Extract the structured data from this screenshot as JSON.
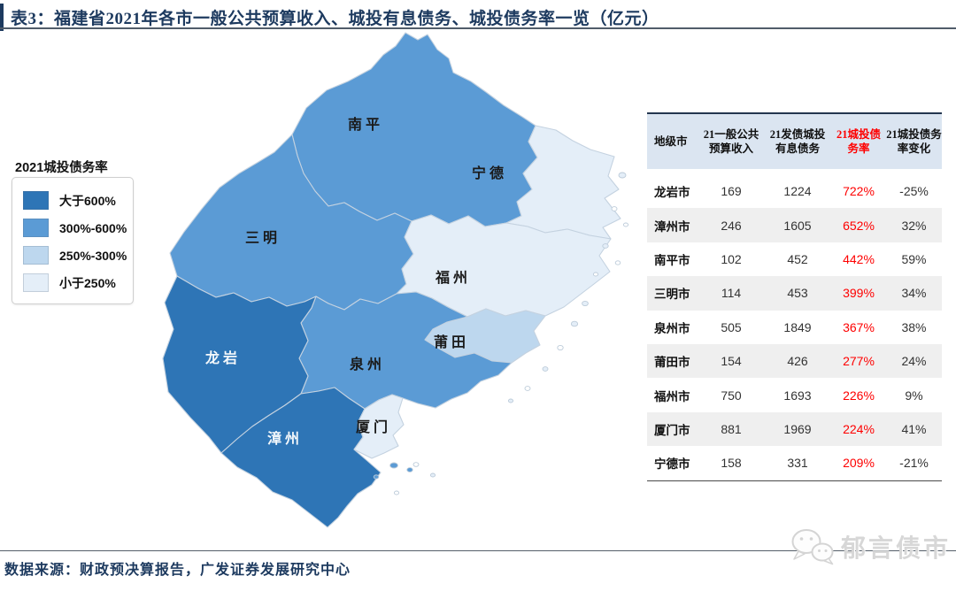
{
  "figure": {
    "title": "表3：福建省2021年各市一般公共预算收入、城投有息债务、城投债务率一览（亿元）",
    "source": "数据来源：财政预决算报告，广发证券发展研究中心",
    "watermark": "郁言债市"
  },
  "legend": {
    "title": "2021城投债务率",
    "items": [
      {
        "label": "大于600%",
        "color": "#2E75B6"
      },
      {
        "label": "300%-600%",
        "color": "#5B9BD5"
      },
      {
        "label": "250%-300%",
        "color": "#BDD7EE"
      },
      {
        "label": "小于250%",
        "color": "#E4EEF8"
      }
    ]
  },
  "map": {
    "regions": [
      {
        "id": "nanping",
        "label": "南平",
        "tier": "300%-600%",
        "color": "#5B9BD5",
        "label_color": "#1a1a1a"
      },
      {
        "id": "ningde",
        "label": "宁德",
        "tier": "小于250%",
        "color": "#E4EEF8",
        "label_color": "#1a1a1a"
      },
      {
        "id": "sanming",
        "label": "三明",
        "tier": "300%-600%",
        "color": "#5B9BD5",
        "label_color": "#1a1a1a"
      },
      {
        "id": "fuzhou",
        "label": "福州",
        "tier": "小于250%",
        "color": "#E4EEF8",
        "label_color": "#1a1a1a"
      },
      {
        "id": "putian",
        "label": "莆田",
        "tier": "250%-300%",
        "color": "#BDD7EE",
        "label_color": "#1a1a1a"
      },
      {
        "id": "quanzhou",
        "label": "泉州",
        "tier": "300%-600%",
        "color": "#5B9BD5",
        "label_color": "#1a1a1a"
      },
      {
        "id": "longyan",
        "label": "龙岩",
        "tier": "大于600%",
        "color": "#2E75B6",
        "label_color": "#f4f8fb"
      },
      {
        "id": "zhangzhou",
        "label": "漳州",
        "tier": "大于600%",
        "color": "#2E75B6",
        "label_color": "#f4f8fb"
      },
      {
        "id": "xiamen",
        "label": "厦门",
        "tier": "小于250%",
        "color": "#E4EEF8",
        "label_color": "#1a1a1a"
      }
    ]
  },
  "table": {
    "columns": [
      {
        "line1": "地级市",
        "line2": ""
      },
      {
        "line1": "21一般公共",
        "line2": "预算收入"
      },
      {
        "line1": "21发债城投",
        "line2": "有息债务"
      },
      {
        "line1": "21城投债",
        "line2": "务率",
        "highlight": true
      },
      {
        "line1": "21城投债务",
        "line2": "率变化"
      }
    ],
    "rows": [
      {
        "city": "龙岩市",
        "revenue": "169",
        "debt": "1224",
        "ratio": "722%",
        "change": "-25%"
      },
      {
        "city": "漳州市",
        "revenue": "246",
        "debt": "1605",
        "ratio": "652%",
        "change": "32%"
      },
      {
        "city": "南平市",
        "revenue": "102",
        "debt": "452",
        "ratio": "442%",
        "change": "59%"
      },
      {
        "city": "三明市",
        "revenue": "114",
        "debt": "453",
        "ratio": "399%",
        "change": "34%"
      },
      {
        "city": "泉州市",
        "revenue": "505",
        "debt": "1849",
        "ratio": "367%",
        "change": "38%"
      },
      {
        "city": "莆田市",
        "revenue": "154",
        "debt": "426",
        "ratio": "277%",
        "change": "24%"
      },
      {
        "city": "福州市",
        "revenue": "750",
        "debt": "1693",
        "ratio": "226%",
        "change": "9%"
      },
      {
        "city": "厦门市",
        "revenue": "881",
        "debt": "1969",
        "ratio": "224%",
        "change": "41%"
      },
      {
        "city": "宁德市",
        "revenue": "158",
        "debt": "331",
        "ratio": "209%",
        "change": "-21%"
      }
    ]
  },
  "chart_data": {
    "type": "table",
    "title": "福建省2021年各市一般公共预算收入、城投有息债务、城投债务率一览（亿元）",
    "columns": [
      "地级市",
      "21一般公共预算收入",
      "21发债城投有息债务",
      "21城投债务率",
      "21城投债务率变化"
    ],
    "rows": [
      [
        "龙岩市",
        169,
        1224,
        "722%",
        "-25%"
      ],
      [
        "漳州市",
        246,
        1605,
        "652%",
        "32%"
      ],
      [
        "南平市",
        102,
        452,
        "442%",
        "59%"
      ],
      [
        "三明市",
        114,
        453,
        "399%",
        "34%"
      ],
      [
        "泉州市",
        505,
        1849,
        "367%",
        "38%"
      ],
      [
        "莆田市",
        154,
        426,
        "277%",
        "24%"
      ],
      [
        "福州市",
        750,
        1693,
        "226%",
        "9%"
      ],
      [
        "厦门市",
        881,
        1969,
        "224%",
        "41%"
      ],
      [
        "宁德市",
        158,
        331,
        "209%",
        "-21%"
      ]
    ],
    "choropleth_metric": "2021城投债务率",
    "choropleth_bins": [
      "大于600%",
      "300%-600%",
      "250%-300%",
      "小于250%"
    ],
    "region_tiers": {
      "龙岩": "大于600%",
      "漳州": "大于600%",
      "南平": "300%-600%",
      "三明": "300%-600%",
      "泉州": "300%-600%",
      "莆田": "250%-300%",
      "福州": "小于250%",
      "宁德": "小于250%",
      "厦门": "小于250%"
    }
  }
}
